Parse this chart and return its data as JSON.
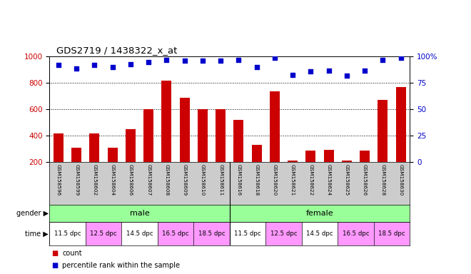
{
  "title": "GDS2719 / 1438322_x_at",
  "samples": [
    "GSM158596",
    "GSM158599",
    "GSM158602",
    "GSM158604",
    "GSM158606",
    "GSM158607",
    "GSM158608",
    "GSM158609",
    "GSM158610",
    "GSM158611",
    "GSM158616",
    "GSM158618",
    "GSM158620",
    "GSM158621",
    "GSM158622",
    "GSM158624",
    "GSM158625",
    "GSM158626",
    "GSM158628",
    "GSM158630"
  ],
  "bar_values": [
    420,
    310,
    420,
    310,
    450,
    600,
    820,
    690,
    600,
    600,
    520,
    330,
    740,
    215,
    290,
    295,
    210,
    290,
    670,
    770
  ],
  "dot_values_pct": [
    92,
    89,
    92,
    90,
    93,
    95,
    97,
    96,
    96,
    96,
    97,
    90,
    99,
    83,
    86,
    87,
    82,
    87,
    97,
    99
  ],
  "bar_color": "#cc0000",
  "dot_color": "#0000cc",
  "ylim_left": [
    200,
    1000
  ],
  "ylim_right": [
    0,
    100
  ],
  "yticks_left": [
    200,
    400,
    600,
    800,
    1000
  ],
  "yticks_right": [
    0,
    25,
    50,
    75,
    100
  ],
  "grid_values": [
    400,
    600,
    800
  ],
  "gender_color": "#99ff99",
  "xaxis_bg": "#cccccc",
  "time_block_colors": [
    "#ffffff",
    "#ff99ff",
    "#ffffff",
    "#ff99ff",
    "#ff99ff",
    "#ffffff",
    "#ff99ff",
    "#ffffff",
    "#ff99ff",
    "#ff99ff"
  ],
  "time_labels": [
    "11.5 dpc",
    "12.5 dpc",
    "14.5 dpc",
    "16.5 dpc",
    "18.5 dpc",
    "11.5 dpc",
    "12.5 dpc",
    "14.5 dpc",
    "16.5 dpc",
    "18.5 dpc"
  ],
  "bg_color": "#ffffff",
  "bar_bottom": 200
}
